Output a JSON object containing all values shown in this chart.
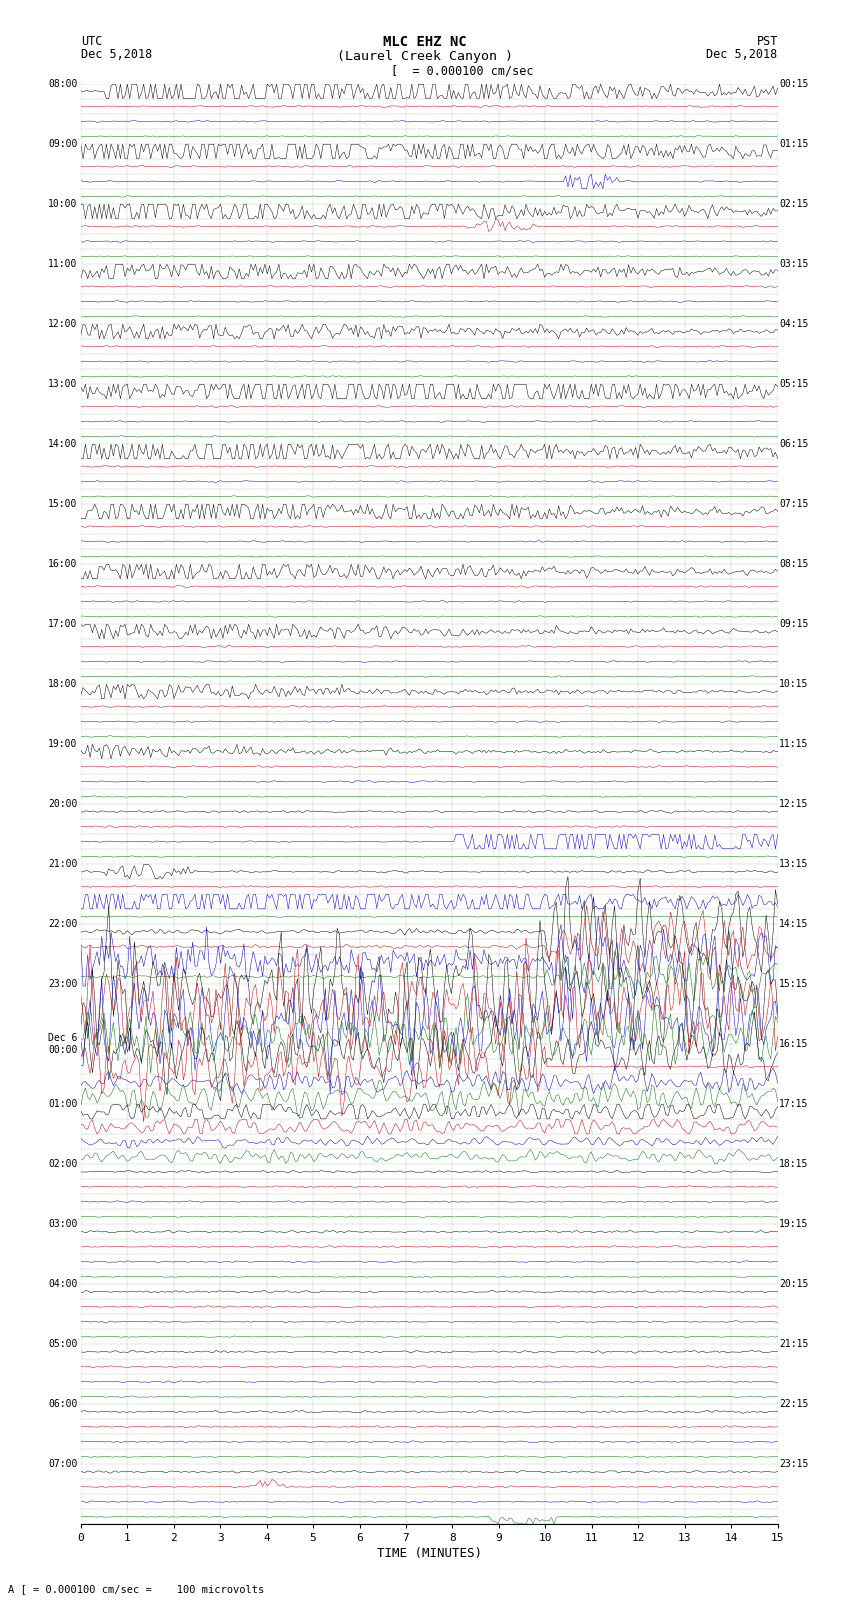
{
  "title_line1": "MLC EHZ NC",
  "title_line2": "(Laurel Creek Canyon )",
  "scale_label": "= 0.000100 cm/sec",
  "utc_header": "UTC",
  "utc_date": "Dec 5,2018",
  "pst_header": "PST",
  "pst_date": "Dec 5,2018",
  "bottom_label": "A [ = 0.000100 cm/sec =    100 microvolts",
  "xlabel": "TIME (MINUTES)",
  "bg_color": "#ffffff",
  "line_color_black": "#000000",
  "line_color_red": "#cc0000",
  "line_color_blue": "#0000cc",
  "line_color_green": "#007700",
  "grid_color": "#888888",
  "xticks": [
    0,
    1,
    2,
    3,
    4,
    5,
    6,
    7,
    8,
    9,
    10,
    11,
    12,
    13,
    14,
    15
  ],
  "fig_width": 8.5,
  "fig_height": 16.13,
  "dpi": 100,
  "utc_labels": [
    "08:00",
    "09:00",
    "10:00",
    "11:00",
    "12:00",
    "13:00",
    "14:00",
    "15:00",
    "16:00",
    "17:00",
    "18:00",
    "19:00",
    "20:00",
    "21:00",
    "22:00",
    "23:00",
    "Dec 6\n00:00",
    "01:00",
    "02:00",
    "03:00",
    "04:00",
    "05:00",
    "06:00",
    "07:00"
  ],
  "pst_labels": [
    "00:15",
    "01:15",
    "02:15",
    "03:15",
    "04:15",
    "05:15",
    "06:15",
    "07:15",
    "08:15",
    "09:15",
    "10:15",
    "11:15",
    "12:15",
    "13:15",
    "14:15",
    "15:15",
    "16:15",
    "17:15",
    "18:15",
    "19:15",
    "20:15",
    "21:15",
    "22:15",
    "23:15"
  ]
}
